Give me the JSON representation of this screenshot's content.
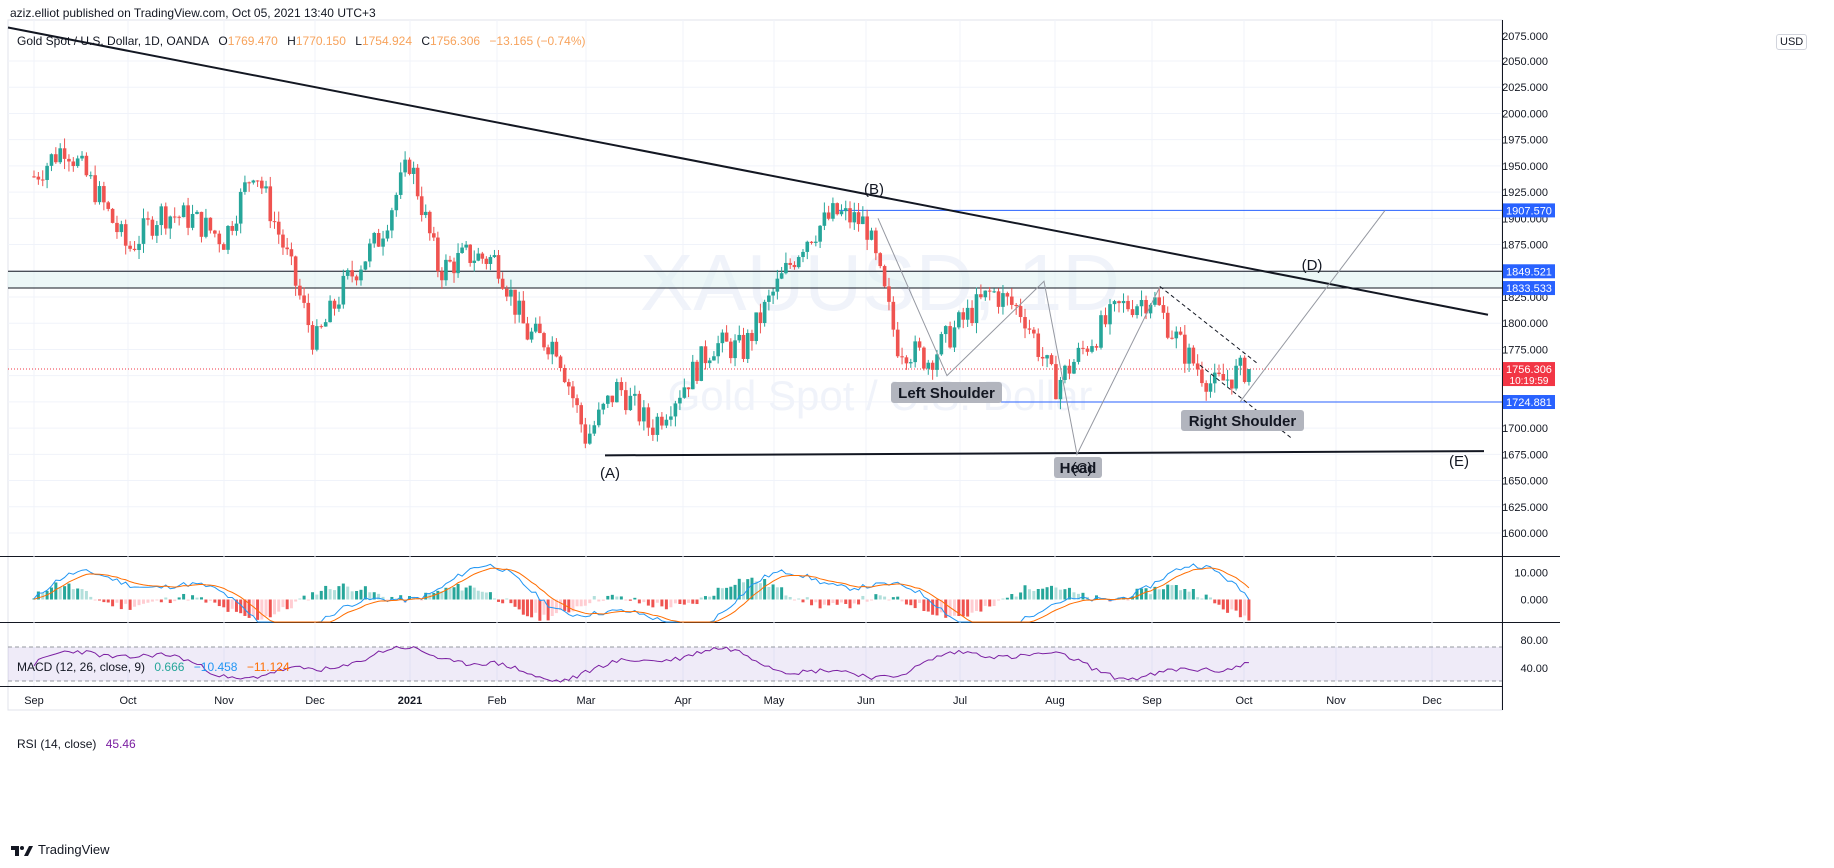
{
  "header": {
    "published": "aziz.elliot published on TradingView.com, Oct 05, 2021 13:40 UTC+3"
  },
  "symbol": {
    "title": "Gold Spot / U.S. Dollar, 1D, OANDA",
    "o_label": "O",
    "o": "1769.470",
    "h_label": "H",
    "h": "1770.150",
    "l_label": "L",
    "l": "1754.924",
    "c_label": "C",
    "c": "1756.306",
    "change": "−13.165 (−0.74%)",
    "watermark_ticker": "XAUUSD, 1D",
    "watermark_name": "Gold Spot / U.S. Dollar"
  },
  "currency": "USD",
  "price_scale_top": "2075.000",
  "macd_legend": {
    "title": "MACD (12, 26, close, 9)",
    "hist": "0.666",
    "macd": "−10.458",
    "signal": "−11.124"
  },
  "rsi_legend": {
    "title": "RSI (14, close)",
    "value": "45.46"
  },
  "annotations": {
    "left_shoulder": "Left Shoulder",
    "head": "Head",
    "right_shoulder": "Right Shoulder",
    "wave_a": "(A)",
    "wave_b": "(B)",
    "wave_c": "(C)",
    "wave_d": "(D)",
    "wave_e": "(E)"
  },
  "price_badges": [
    {
      "value": "1907.570",
      "price": 1907.57,
      "color": "#2962ff"
    },
    {
      "value": "1849.521",
      "price": 1849.521,
      "color": "#2962ff"
    },
    {
      "value": "1833.533",
      "price": 1833.533,
      "color": "#2962ff"
    },
    {
      "value": "1756.306",
      "price": 1756.306,
      "color": "#f23645",
      "countdown": "10:19:59"
    },
    {
      "value": "1724.881",
      "price": 1724.881,
      "color": "#2962ff"
    }
  ],
  "footer": {
    "brand": "TradingView"
  },
  "colors": {
    "up": "#26a69a",
    "down": "#ef5350",
    "macd": "#2196f3",
    "signal": "#ff6d00",
    "rsi": "#7b1fa2",
    "rsi_band": "#7e57c2"
  },
  "chart_data": [
    {
      "type": "candlestick",
      "title": "Gold Spot / U.S. Dollar, 1D, OANDA",
      "x_ticks": [
        "Sep",
        "Oct",
        "Nov",
        "Dec",
        "2021",
        "Feb",
        "Mar",
        "Apr",
        "May",
        "Jun",
        "Jul",
        "Aug",
        "Sep",
        "Oct",
        "Nov",
        "Dec"
      ],
      "y_ticks": [
        1600,
        1625,
        1650,
        1675,
        1700,
        1725,
        1750,
        1775,
        1800,
        1825,
        1850,
        1875,
        1900,
        1925,
        1950,
        1975,
        2000,
        2025,
        2050
      ],
      "ylim": [
        1575,
        2085
      ],
      "approx_closes": [
        {
          "x": "Sep",
          "y": 1940
        },
        {
          "x": "Sep",
          "y": 1970
        },
        {
          "x": "Sep",
          "y": 1925
        },
        {
          "x": "Oct",
          "y": 1870
        },
        {
          "x": "Oct",
          "y": 1905
        },
        {
          "x": "Oct",
          "y": 1900
        },
        {
          "x": "Nov",
          "y": 1880
        },
        {
          "x": "Nov",
          "y": 1950
        },
        {
          "x": "Nov",
          "y": 1870
        },
        {
          "x": "Dec",
          "y": 1780
        },
        {
          "x": "Dec",
          "y": 1840
        },
        {
          "x": "Dec",
          "y": 1880
        },
        {
          "x": "2021",
          "y": 1955
        },
        {
          "x": "2021",
          "y": 1850
        },
        {
          "x": "2021",
          "y": 1865
        },
        {
          "x": "Feb",
          "y": 1860
        },
        {
          "x": "Feb",
          "y": 1790
        },
        {
          "x": "Feb",
          "y": 1780
        },
        {
          "x": "Mar",
          "y": 1690
        },
        {
          "x": "Mar",
          "y": 1740
        },
        {
          "x": "Mar",
          "y": 1700
        },
        {
          "x": "Apr",
          "y": 1740
        },
        {
          "x": "Apr",
          "y": 1780
        },
        {
          "x": "Apr",
          "y": 1775
        },
        {
          "x": "May",
          "y": 1830
        },
        {
          "x": "May",
          "y": 1880
        },
        {
          "x": "May",
          "y": 1905
        },
        {
          "x": "Jun",
          "y": 1895
        },
        {
          "x": "Jun",
          "y": 1780
        },
        {
          "x": "Jun",
          "y": 1765
        },
        {
          "x": "Jul",
          "y": 1800
        },
        {
          "x": "Jul",
          "y": 1830
        },
        {
          "x": "Jul",
          "y": 1810
        },
        {
          "x": "Aug",
          "y": 1740
        },
        {
          "x": "Aug",
          "y": 1780
        },
        {
          "x": "Aug",
          "y": 1815
        },
        {
          "x": "Sep",
          "y": 1825
        },
        {
          "x": "Sep",
          "y": 1775
        },
        {
          "x": "Sep",
          "y": 1740
        },
        {
          "x": "Oct",
          "y": 1756
        }
      ],
      "trendlines": [
        {
          "from": {
            "x": "Sep",
            "y": 2080
          },
          "to": {
            "x": "Dec",
            "y": 1810
          }
        },
        {
          "from": {
            "x": "Mar",
            "y": 1675
          },
          "to": {
            "x": "Dec",
            "y": 1679
          }
        }
      ],
      "horizontal_levels": [
        1907.57,
        1849.521,
        1833.533,
        1724.881
      ]
    },
    {
      "type": "bar",
      "title": "MACD (12, 26, close, 9)",
      "y_ticks": [
        10.0,
        0.0
      ],
      "series": [
        {
          "name": "Histogram",
          "last": 0.666
        },
        {
          "name": "MACD",
          "last": -10.458
        },
        {
          "name": "Signal",
          "last": -11.124
        }
      ]
    },
    {
      "type": "line",
      "title": "RSI (14, close)",
      "y_ticks": [
        80.0,
        40.0
      ],
      "ylim": [
        10,
        90
      ],
      "band": [
        30,
        70
      ],
      "series": [
        {
          "name": "RSI",
          "last": 45.46
        }
      ]
    }
  ]
}
